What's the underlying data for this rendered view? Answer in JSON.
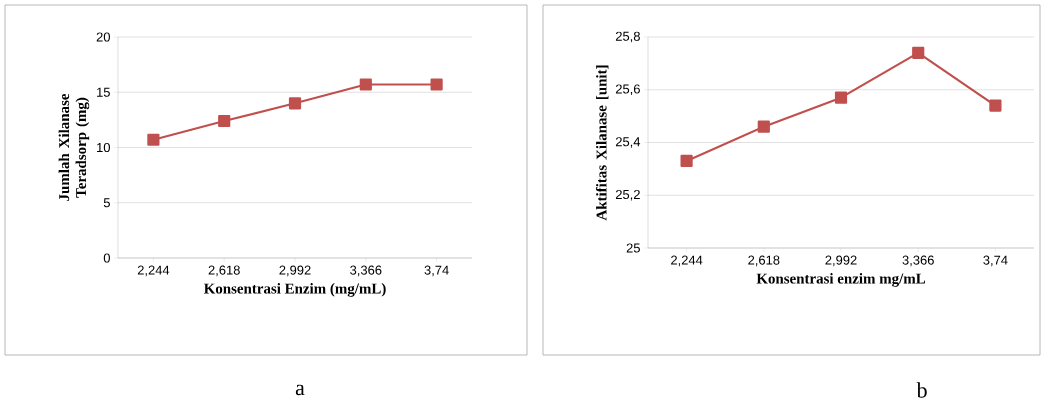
{
  "chart_data": [
    {
      "type": "line",
      "xlabel": "Konsentrasi Enzim (mg/mL)",
      "ylabel": "Jumlah Xilanase Teradsorp (mg)",
      "categories": [
        "2,244",
        "2,618",
        "2,992",
        "3,366",
        "3,74"
      ],
      "series": [
        {
          "color": "#c0504d",
          "values": [
            10.7,
            12.4,
            14.0,
            15.7,
            15.7
          ]
        }
      ],
      "ylim": [
        0,
        20
      ],
      "yticks": [
        0,
        5,
        10,
        15,
        20
      ],
      "grid": "y",
      "marker": "square",
      "line_style": "solid",
      "annotations": [
        "a"
      ]
    },
    {
      "type": "line",
      "xlabel": "Konsentrasi enzim mg/mL",
      "ylabel": "Aktifitas Xilanase [unit]",
      "categories": [
        "2,244",
        "2,618",
        "2,992",
        "3,366",
        "3,74"
      ],
      "series": [
        {
          "color": "#c0504d",
          "values": [
            25.33,
            25.46,
            25.57,
            25.74,
            25.54
          ]
        }
      ],
      "ylim": [
        25,
        25.8
      ],
      "yticks": [
        25,
        {
          "value": 25.2,
          "label": "25,2"
        },
        {
          "value": 25.4,
          "label": "25,4"
        },
        {
          "value": 25.6,
          "label": "25,6"
        },
        {
          "value": 25.8,
          "label": "25,8"
        }
      ],
      "grid": "y",
      "marker": "square",
      "line_style": "solid",
      "annotations": [
        "b"
      ]
    }
  ]
}
